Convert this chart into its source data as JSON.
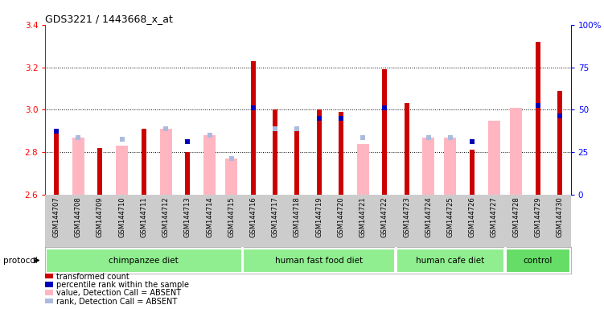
{
  "title": "GDS3221 / 1443668_x_at",
  "samples": [
    "GSM144707",
    "GSM144708",
    "GSM144709",
    "GSM144710",
    "GSM144711",
    "GSM144712",
    "GSM144713",
    "GSM144714",
    "GSM144715",
    "GSM144716",
    "GSM144717",
    "GSM144718",
    "GSM144719",
    "GSM144720",
    "GSM144721",
    "GSM144722",
    "GSM144723",
    "GSM144724",
    "GSM144725",
    "GSM144726",
    "GSM144727",
    "GSM144728",
    "GSM144729",
    "GSM144730"
  ],
  "red_bars": [
    2.9,
    null,
    2.82,
    null,
    2.91,
    null,
    2.8,
    null,
    null,
    3.23,
    3.0,
    2.91,
    3.0,
    2.99,
    null,
    3.19,
    3.03,
    null,
    null,
    2.81,
    null,
    null,
    3.32,
    3.09
  ],
  "pink_bars": [
    null,
    2.87,
    null,
    2.83,
    null,
    2.91,
    null,
    2.88,
    2.77,
    null,
    null,
    null,
    null,
    null,
    2.84,
    null,
    null,
    2.87,
    2.87,
    null,
    2.95,
    3.01,
    null,
    null
  ],
  "blue_squares": [
    2.9,
    null,
    null,
    null,
    null,
    null,
    2.85,
    null,
    null,
    3.01,
    null,
    null,
    2.96,
    2.96,
    null,
    3.01,
    null,
    null,
    null,
    2.85,
    null,
    null,
    3.02,
    2.97
  ],
  "light_blue_squares": [
    null,
    2.87,
    null,
    2.86,
    null,
    2.91,
    null,
    2.88,
    2.77,
    null,
    2.91,
    2.91,
    null,
    null,
    2.87,
    null,
    null,
    2.87,
    2.87,
    null,
    null,
    null,
    null,
    null
  ],
  "group_defs": [
    [
      0,
      8,
      "chimpanzee diet",
      "#90EE90"
    ],
    [
      9,
      15,
      "human fast food diet",
      "#90EE90"
    ],
    [
      16,
      20,
      "human cafe diet",
      "#90EE90"
    ],
    [
      21,
      23,
      "control",
      "#66DD66"
    ]
  ],
  "ylim": [
    2.6,
    3.4
  ],
  "y2lim": [
    0,
    100
  ],
  "yticks": [
    2.6,
    2.8,
    3.0,
    3.2,
    3.4
  ],
  "y2ticks": [
    0,
    25,
    50,
    75,
    100
  ],
  "red_color": "#CC0000",
  "pink_color": "#FFB6C1",
  "blue_color": "#0000BB",
  "light_blue_color": "#AABBDD",
  "grid_lines": [
    2.8,
    3.0,
    3.2
  ]
}
